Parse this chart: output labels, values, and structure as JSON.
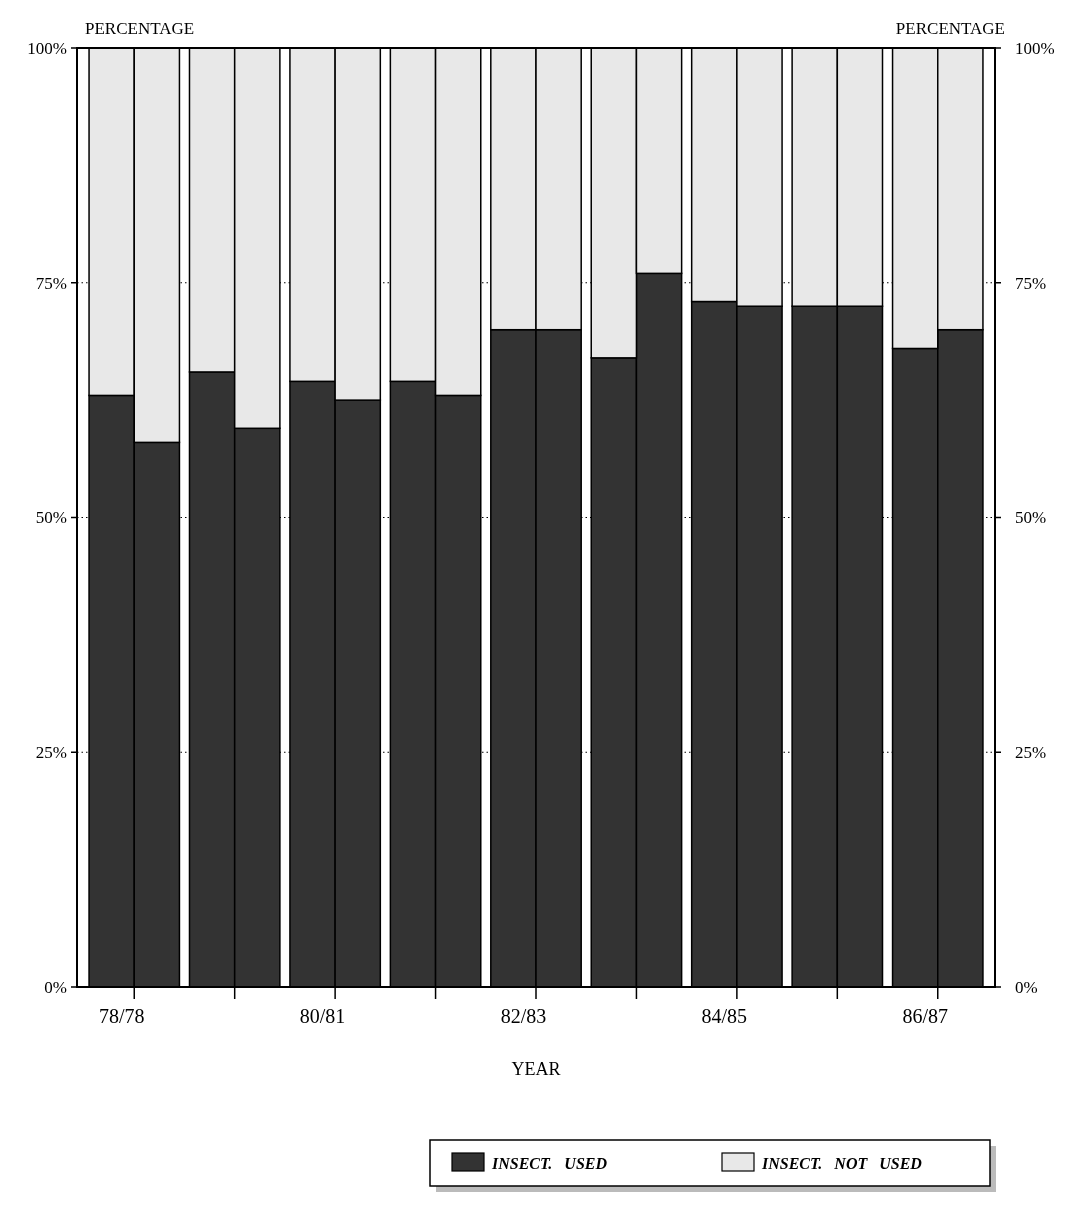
{
  "chart_data": {
    "type": "bar",
    "stacked": true,
    "xlabel": "YEAR",
    "ylabel": "PERCENTAGE",
    "y2label": "PERCENTAGE",
    "categories": [
      "78/78",
      null,
      null,
      null,
      "80/81",
      null,
      null,
      null,
      "82/83",
      null,
      null,
      null,
      "84/85",
      null,
      null,
      null,
      "86/87",
      null
    ],
    "series": [
      {
        "name": "INSECT.   USED",
        "color": "#333333",
        "values": [
          63,
          58,
          65.5,
          59.5,
          64.5,
          62.5,
          64.5,
          63,
          70,
          70,
          67,
          76,
          73,
          72.5,
          72.5,
          72.5,
          68,
          70
        ]
      },
      {
        "name": "INSECT.   NOT   USED",
        "color": "#e8e8e8",
        "values": [
          37,
          42,
          34.5,
          40.5,
          35.5,
          37.5,
          35.5,
          37,
          30,
          30,
          33,
          24,
          27,
          27.5,
          27.5,
          27.5,
          32,
          30
        ]
      }
    ],
    "ylim": [
      0,
      100
    ],
    "yticks": [
      {
        "value": 0,
        "label": "0%"
      },
      {
        "value": 25,
        "label": "25%"
      },
      {
        "value": 50,
        "label": "50%"
      },
      {
        "value": 75,
        "label": "75%"
      },
      {
        "value": 100,
        "label": "100%"
      }
    ],
    "y2lim": [
      0,
      100
    ],
    "y2ticks": [
      {
        "value": 0,
        "label": "0%"
      },
      {
        "value": 25,
        "label": "25%"
      },
      {
        "value": 50,
        "label": "50%"
      },
      {
        "value": 75,
        "label": "75%"
      },
      {
        "value": 100,
        "label": "100%"
      }
    ],
    "grid": "y",
    "legend": "bottom right"
  }
}
